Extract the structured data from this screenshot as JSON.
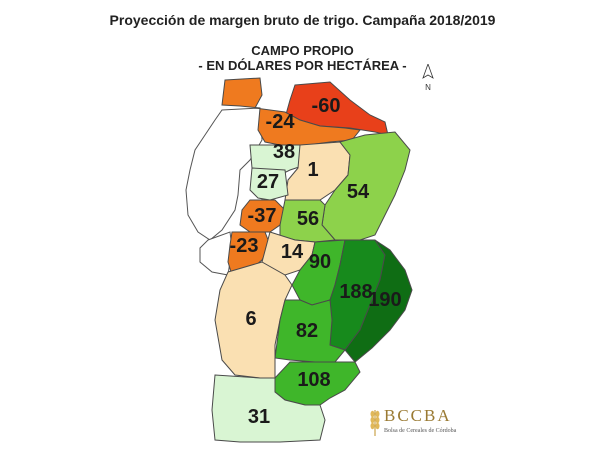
{
  "header": {
    "title": "Proyección de margen bruto de trigo. Campaña 2018/2019",
    "subtitle_line1": "CAMPO PROPIO",
    "subtitle_line2": "- EN DÓLARES POR HECTÁREA -"
  },
  "compass": {
    "label": "N"
  },
  "regions": [
    {
      "id": "north-a",
      "value": "-60",
      "color": "#e8401a"
    },
    {
      "id": "north-b",
      "value": "-24",
      "color": "#ef7a1f"
    },
    {
      "id": "north-c",
      "value": "38",
      "color": "#d9f5d3"
    },
    {
      "id": "center-a",
      "value": "1",
      "color": "#fae0b2"
    },
    {
      "id": "northeast",
      "value": "54",
      "color": "#8dd24b"
    },
    {
      "id": "center-b",
      "value": "27",
      "color": "#d9f5d3"
    },
    {
      "id": "center-c",
      "value": "-37",
      "color": "#ef7a1f"
    },
    {
      "id": "center-d",
      "value": "56",
      "color": "#8dd24b"
    },
    {
      "id": "west-a",
      "value": "-23",
      "color": "#ef7a1f"
    },
    {
      "id": "center-e",
      "value": "14",
      "color": "#fae0b2"
    },
    {
      "id": "east-a",
      "value": "90",
      "color": "#3fb62a"
    },
    {
      "id": "east-b",
      "value": "188",
      "color": "#178a1c"
    },
    {
      "id": "east-c",
      "value": "190",
      "color": "#0f6d14"
    },
    {
      "id": "south-a",
      "value": "6",
      "color": "#fae0b2"
    },
    {
      "id": "south-b",
      "value": "82",
      "color": "#3fb62a"
    },
    {
      "id": "south-c",
      "value": "108",
      "color": "#3fb62a"
    },
    {
      "id": "south-d",
      "value": "31",
      "color": "#d9f5d3"
    }
  ],
  "logo": {
    "name": "BCCBA",
    "subtitle": "Bolsa de Cereales de Córdoba"
  }
}
